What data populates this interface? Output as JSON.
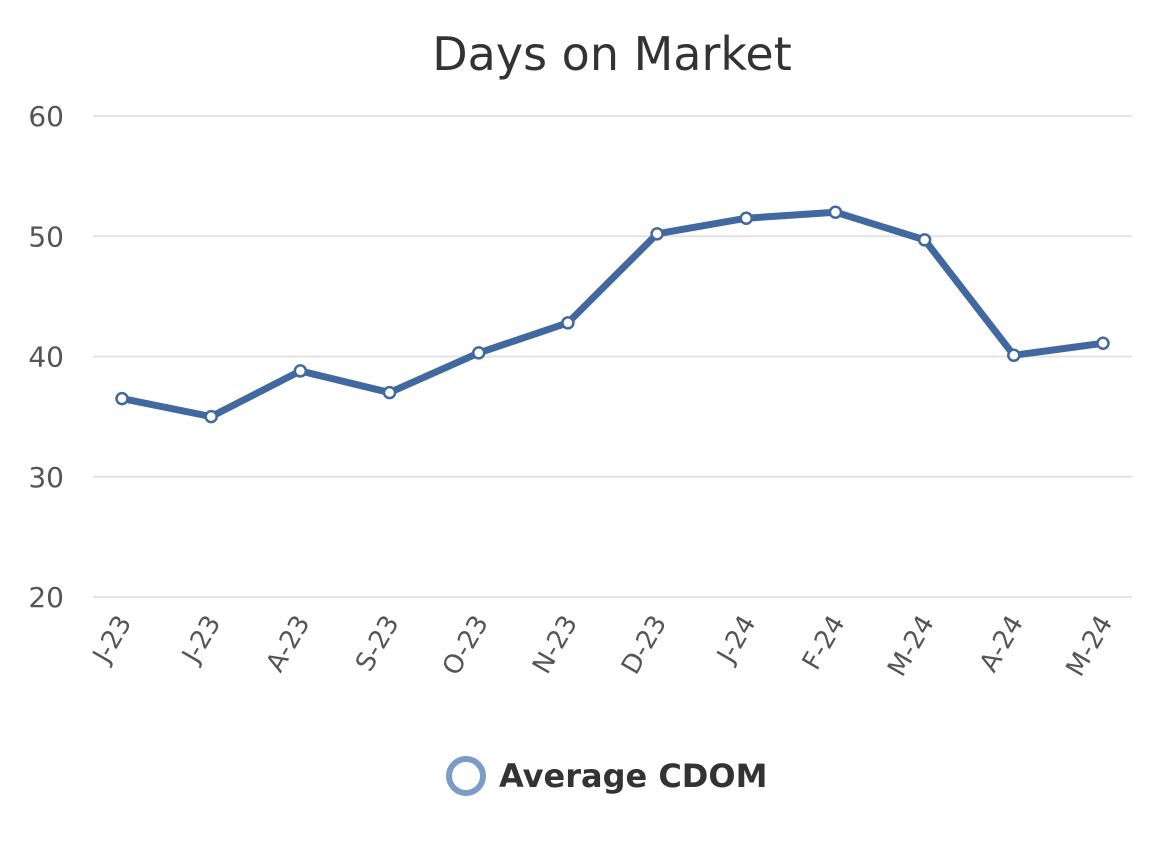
{
  "chart_data": {
    "type": "line",
    "title": "Days on Market",
    "categories": [
      "J-23",
      "J-23",
      "A-23",
      "S-23",
      "O-23",
      "N-23",
      "D-23",
      "J-24",
      "F-24",
      "M-24",
      "A-24",
      "M-24"
    ],
    "series": [
      {
        "name": "Average CDOM",
        "values": [
          36.5,
          35,
          38.8,
          37,
          40.3,
          42.8,
          50.2,
          51.5,
          52,
          49.7,
          40.1,
          41.1
        ],
        "color": "#41689f"
      }
    ],
    "y_ticks": [
      20,
      30,
      40,
      50,
      60
    ],
    "ylim": [
      20,
      60
    ],
    "grid": true,
    "legend": "bottom-center"
  }
}
